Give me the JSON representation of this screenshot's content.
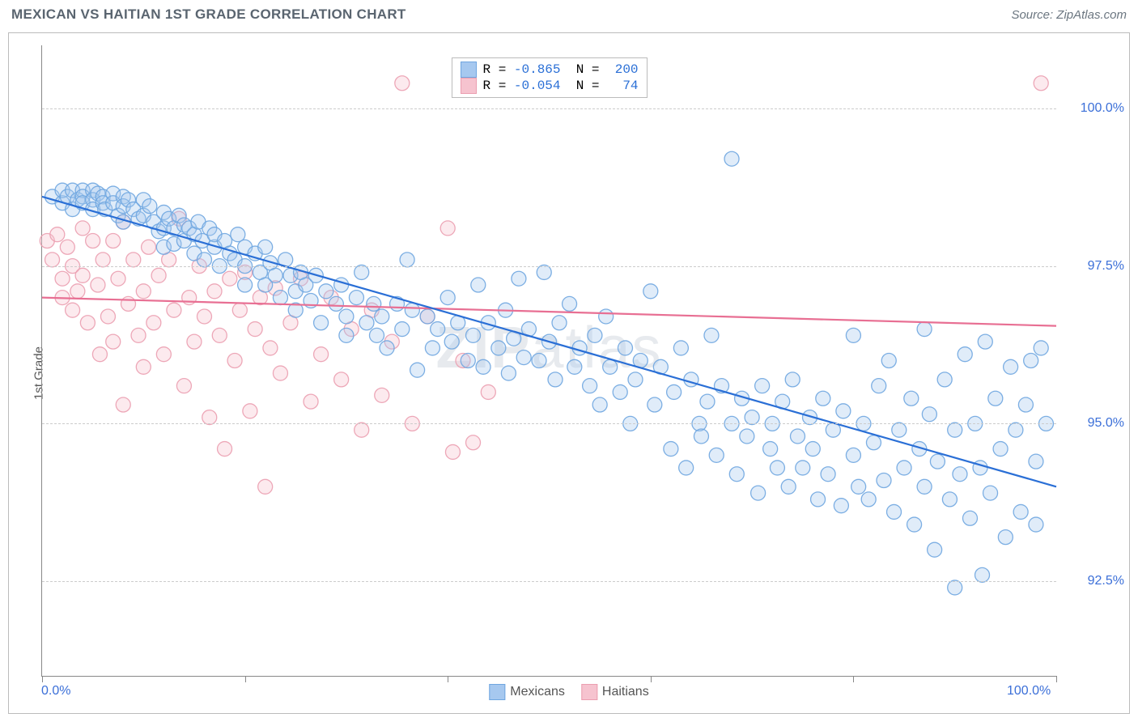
{
  "header": {
    "title": "MEXICAN VS HAITIAN 1ST GRADE CORRELATION CHART",
    "source": "Source: ZipAtlas.com"
  },
  "chart": {
    "type": "scatter",
    "y_axis_label": "1st Grade",
    "xlim": [
      0,
      100
    ],
    "ylim": [
      91.0,
      101.0
    ],
    "x_ticks": [
      0,
      20,
      40,
      60,
      80,
      100
    ],
    "x_tick_labels_shown": {
      "0": "0.0%",
      "100": "100.0%"
    },
    "y_gridlines": [
      92.5,
      95.0,
      97.5,
      100.0
    ],
    "y_tick_labels": {
      "92.5": "92.5%",
      "95.0": "95.0%",
      "97.5": "97.5%",
      "100.0": "100.0%"
    },
    "background_color": "#ffffff",
    "grid_color": "#cccccc",
    "axis_color": "#888888",
    "tick_label_color": "#3b6fd8",
    "marker_radius": 9,
    "marker_fill_opacity": 0.35,
    "marker_stroke_opacity": 0.9,
    "line_width": 2.2,
    "watermark_text": "ZIPatlas",
    "series": {
      "mexicans": {
        "label": "Mexicans",
        "color_fill": "#a6c8ef",
        "color_stroke": "#6fa6e0",
        "line_color": "#2a6fd6",
        "R": "-0.865",
        "N": "200",
        "trend": {
          "x1": 0,
          "y1": 98.6,
          "x2": 100,
          "y2": 94.0
        },
        "points": [
          [
            1,
            98.6
          ],
          [
            2,
            98.5
          ],
          [
            2,
            98.7
          ],
          [
            2.5,
            98.6
          ],
          [
            3,
            98.4
          ],
          [
            3,
            98.7
          ],
          [
            3.5,
            98.55
          ],
          [
            4,
            98.7
          ],
          [
            4,
            98.6
          ],
          [
            4,
            98.5
          ],
          [
            5,
            98.7
          ],
          [
            5,
            98.55
          ],
          [
            5,
            98.4
          ],
          [
            5.5,
            98.65
          ],
          [
            6,
            98.6
          ],
          [
            6,
            98.5
          ],
          [
            6.2,
            98.4
          ],
          [
            7,
            98.65
          ],
          [
            7,
            98.5
          ],
          [
            7.5,
            98.3
          ],
          [
            8,
            98.6
          ],
          [
            8,
            98.45
          ],
          [
            8,
            98.2
          ],
          [
            8.5,
            98.55
          ],
          [
            9,
            98.4
          ],
          [
            9.5,
            98.25
          ],
          [
            10,
            98.55
          ],
          [
            10,
            98.3
          ],
          [
            10.6,
            98.45
          ],
          [
            11,
            98.2
          ],
          [
            11.5,
            98.05
          ],
          [
            12,
            98.35
          ],
          [
            12,
            98.1
          ],
          [
            12,
            97.8
          ],
          [
            12.5,
            98.25
          ],
          [
            13,
            98.1
          ],
          [
            13,
            97.85
          ],
          [
            13.5,
            98.3
          ],
          [
            14,
            98.15
          ],
          [
            14,
            97.9
          ],
          [
            14.5,
            98.1
          ],
          [
            15,
            98.0
          ],
          [
            15,
            97.7
          ],
          [
            15.4,
            98.2
          ],
          [
            15.8,
            97.9
          ],
          [
            16,
            97.6
          ],
          [
            16.5,
            98.1
          ],
          [
            17,
            97.8
          ],
          [
            17,
            98.0
          ],
          [
            17.5,
            97.5
          ],
          [
            18,
            97.9
          ],
          [
            18.5,
            97.7
          ],
          [
            19,
            97.6
          ],
          [
            19.3,
            98.0
          ],
          [
            20,
            97.8
          ],
          [
            20,
            97.5
          ],
          [
            20,
            97.2
          ],
          [
            21,
            97.7
          ],
          [
            21.5,
            97.4
          ],
          [
            22,
            97.8
          ],
          [
            22,
            97.2
          ],
          [
            22.5,
            97.55
          ],
          [
            23,
            97.35
          ],
          [
            23.5,
            97.0
          ],
          [
            24,
            97.6
          ],
          [
            24.5,
            97.35
          ],
          [
            25,
            97.1
          ],
          [
            25,
            96.8
          ],
          [
            25.5,
            97.4
          ],
          [
            26,
            97.2
          ],
          [
            26.5,
            96.95
          ],
          [
            27,
            97.35
          ],
          [
            27.5,
            96.6
          ],
          [
            28,
            97.1
          ],
          [
            29,
            96.9
          ],
          [
            29.5,
            97.2
          ],
          [
            30,
            96.7
          ],
          [
            30,
            96.4
          ],
          [
            31,
            97.0
          ],
          [
            31.5,
            97.4
          ],
          [
            32,
            96.6
          ],
          [
            32.7,
            96.9
          ],
          [
            33,
            96.4
          ],
          [
            33.5,
            96.7
          ],
          [
            34,
            96.2
          ],
          [
            35,
            96.9
          ],
          [
            35.5,
            96.5
          ],
          [
            36,
            97.6
          ],
          [
            36.5,
            96.8
          ],
          [
            37,
            95.85
          ],
          [
            38,
            96.7
          ],
          [
            38.5,
            96.2
          ],
          [
            39,
            96.5
          ],
          [
            40,
            97.0
          ],
          [
            40.4,
            96.3
          ],
          [
            41,
            96.6
          ],
          [
            42,
            96.0
          ],
          [
            42.5,
            96.4
          ],
          [
            43,
            97.2
          ],
          [
            43.5,
            95.9
          ],
          [
            44,
            96.6
          ],
          [
            45,
            96.2
          ],
          [
            45.7,
            96.8
          ],
          [
            46,
            95.8
          ],
          [
            46.5,
            96.35
          ],
          [
            47,
            97.3
          ],
          [
            47.5,
            96.05
          ],
          [
            48,
            96.5
          ],
          [
            49,
            96.0
          ],
          [
            49.5,
            97.4
          ],
          [
            50,
            96.3
          ],
          [
            50.6,
            95.7
          ],
          [
            51,
            96.6
          ],
          [
            52,
            96.9
          ],
          [
            52.5,
            95.9
          ],
          [
            53,
            96.2
          ],
          [
            54,
            95.6
          ],
          [
            54.5,
            96.4
          ],
          [
            55,
            95.3
          ],
          [
            55.6,
            96.7
          ],
          [
            56,
            95.9
          ],
          [
            57,
            95.5
          ],
          [
            57.5,
            96.2
          ],
          [
            58,
            95.0
          ],
          [
            58.5,
            95.7
          ],
          [
            59,
            96.0
          ],
          [
            60,
            97.1
          ],
          [
            60.4,
            95.3
          ],
          [
            61,
            95.9
          ],
          [
            62,
            94.6
          ],
          [
            62.3,
            95.5
          ],
          [
            63,
            96.2
          ],
          [
            63.5,
            94.3
          ],
          [
            64,
            95.7
          ],
          [
            64.8,
            95.0
          ],
          [
            65,
            94.8
          ],
          [
            65.6,
            95.35
          ],
          [
            66,
            96.4
          ],
          [
            66.5,
            94.5
          ],
          [
            67,
            95.6
          ],
          [
            68,
            95.0
          ],
          [
            68,
            99.2
          ],
          [
            68.5,
            94.2
          ],
          [
            69,
            95.4
          ],
          [
            69.5,
            94.8
          ],
          [
            70,
            95.1
          ],
          [
            70.6,
            93.9
          ],
          [
            71,
            95.6
          ],
          [
            71.8,
            94.6
          ],
          [
            72,
            95.0
          ],
          [
            72.5,
            94.3
          ],
          [
            73,
            95.35
          ],
          [
            73.6,
            94.0
          ],
          [
            74,
            95.7
          ],
          [
            74.5,
            94.8
          ],
          [
            75,
            94.3
          ],
          [
            75.7,
            95.1
          ],
          [
            76,
            94.6
          ],
          [
            76.5,
            93.8
          ],
          [
            77,
            95.4
          ],
          [
            77.5,
            94.2
          ],
          [
            78,
            94.9
          ],
          [
            78.8,
            93.7
          ],
          [
            79,
            95.2
          ],
          [
            80,
            94.5
          ],
          [
            80,
            96.4
          ],
          [
            80.5,
            94.0
          ],
          [
            81,
            95.0
          ],
          [
            81.5,
            93.8
          ],
          [
            82,
            94.7
          ],
          [
            82.5,
            95.6
          ],
          [
            83,
            94.1
          ],
          [
            83.5,
            96.0
          ],
          [
            84,
            93.6
          ],
          [
            84.5,
            94.9
          ],
          [
            85,
            94.3
          ],
          [
            85.7,
            95.4
          ],
          [
            86,
            93.4
          ],
          [
            86.5,
            94.6
          ],
          [
            87,
            94.0
          ],
          [
            87,
            96.5
          ],
          [
            87.5,
            95.15
          ],
          [
            88,
            93.0
          ],
          [
            88.3,
            94.4
          ],
          [
            89,
            95.7
          ],
          [
            89.5,
            93.8
          ],
          [
            90,
            94.9
          ],
          [
            90,
            92.4
          ],
          [
            90.5,
            94.2
          ],
          [
            91,
            96.1
          ],
          [
            91.5,
            93.5
          ],
          [
            92,
            95.0
          ],
          [
            92.5,
            94.3
          ],
          [
            92.7,
            92.6
          ],
          [
            93,
            96.3
          ],
          [
            93.5,
            93.9
          ],
          [
            94,
            95.4
          ],
          [
            94.5,
            94.6
          ],
          [
            95,
            93.2
          ],
          [
            95.5,
            95.9
          ],
          [
            96,
            94.9
          ],
          [
            96.5,
            93.6
          ],
          [
            97,
            95.3
          ],
          [
            97.5,
            96.0
          ],
          [
            98,
            94.4
          ],
          [
            98,
            93.4
          ],
          [
            98.5,
            96.2
          ],
          [
            99,
            95.0
          ]
        ]
      },
      "haitians": {
        "label": "Haitians",
        "color_fill": "#f6c3cf",
        "color_stroke": "#eb9eb0",
        "line_color": "#e86f93",
        "R": "-0.054",
        "N": "74",
        "trend": {
          "x1": 0,
          "y1": 97.0,
          "x2": 100,
          "y2": 96.55
        },
        "points": [
          [
            0.5,
            97.9
          ],
          [
            1,
            97.6
          ],
          [
            1.5,
            98.0
          ],
          [
            2,
            97.3
          ],
          [
            2,
            97.0
          ],
          [
            2.5,
            97.8
          ],
          [
            3,
            97.5
          ],
          [
            3,
            96.8
          ],
          [
            3.5,
            97.1
          ],
          [
            4,
            98.1
          ],
          [
            4,
            97.35
          ],
          [
            4.5,
            96.6
          ],
          [
            5,
            97.9
          ],
          [
            5.5,
            97.2
          ],
          [
            5.7,
            96.1
          ],
          [
            6,
            97.6
          ],
          [
            6.5,
            96.7
          ],
          [
            7,
            97.9
          ],
          [
            7,
            96.3
          ],
          [
            7.5,
            97.3
          ],
          [
            8,
            98.2
          ],
          [
            8,
            95.3
          ],
          [
            8.5,
            96.9
          ],
          [
            9,
            97.6
          ],
          [
            9.5,
            96.4
          ],
          [
            10,
            97.1
          ],
          [
            10,
            95.9
          ],
          [
            10.5,
            97.8
          ],
          [
            11,
            96.6
          ],
          [
            11.5,
            97.35
          ],
          [
            12,
            96.1
          ],
          [
            12.5,
            97.6
          ],
          [
            13,
            96.8
          ],
          [
            13.5,
            98.25
          ],
          [
            14,
            95.6
          ],
          [
            14.5,
            97.0
          ],
          [
            15,
            96.3
          ],
          [
            15.5,
            97.5
          ],
          [
            16,
            96.7
          ],
          [
            16.5,
            95.1
          ],
          [
            17,
            97.1
          ],
          [
            17.5,
            96.4
          ],
          [
            18,
            94.6
          ],
          [
            18.5,
            97.3
          ],
          [
            19,
            96.0
          ],
          [
            19.5,
            96.8
          ],
          [
            20,
            97.4
          ],
          [
            20.5,
            95.2
          ],
          [
            21,
            96.5
          ],
          [
            21.5,
            97.0
          ],
          [
            22,
            94.0
          ],
          [
            22.5,
            96.2
          ],
          [
            23,
            97.15
          ],
          [
            23.5,
            95.8
          ],
          [
            24.5,
            96.6
          ],
          [
            25.5,
            97.3
          ],
          [
            26.5,
            95.35
          ],
          [
            27.5,
            96.1
          ],
          [
            28.5,
            97.0
          ],
          [
            29.5,
            95.7
          ],
          [
            30.5,
            96.5
          ],
          [
            31.5,
            94.9
          ],
          [
            32.5,
            96.8
          ],
          [
            33.5,
            95.45
          ],
          [
            34.5,
            96.3
          ],
          [
            35.5,
            100.4
          ],
          [
            36.5,
            95.0
          ],
          [
            38,
            96.7
          ],
          [
            40,
            98.1
          ],
          [
            40.5,
            94.55
          ],
          [
            41.5,
            96.0
          ],
          [
            42.5,
            94.7
          ],
          [
            44,
            95.5
          ],
          [
            98.5,
            100.4
          ]
        ]
      }
    },
    "legend_bottom": [
      {
        "label": "Mexicans",
        "fill": "#a6c8ef",
        "stroke": "#6fa6e0"
      },
      {
        "label": "Haitians",
        "fill": "#f6c3cf",
        "stroke": "#eb9eb0"
      }
    ]
  }
}
